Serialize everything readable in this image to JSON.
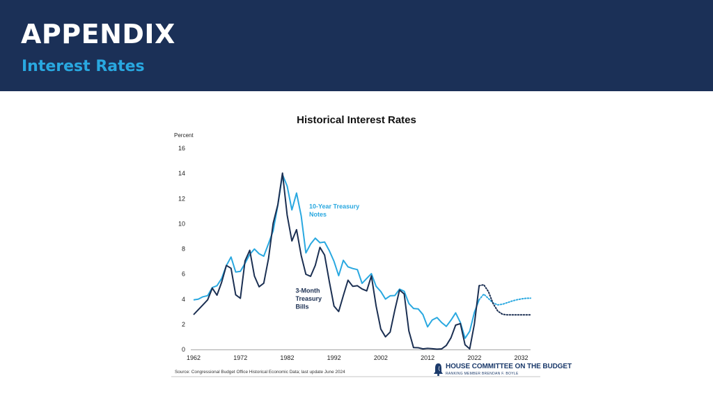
{
  "header": {
    "title": "APPENDIX",
    "subtitle": "Interest Rates"
  },
  "logo": {
    "name": "HOUSE COMMITTEE ON THE BUDGET",
    "sub": "RANKING MEMBER BRENDAN F. BOYLE"
  },
  "colors": {
    "header_bg": "#1b3057",
    "subtitle": "#29a8e0",
    "ten_year": "#29a8e0",
    "three_month": "#1b2f52"
  },
  "chart_data": {
    "type": "line",
    "title": "Historical Interest Rates",
    "ylabel": "Percent",
    "xlabel": "",
    "xlim": [
      1962,
      2034
    ],
    "ylim": [
      0,
      16
    ],
    "x_ticks": [
      1962,
      1972,
      1982,
      1992,
      2002,
      2012,
      2022,
      2032
    ],
    "y_ticks": [
      0,
      2,
      4,
      6,
      8,
      10,
      12,
      14,
      16
    ],
    "grid": false,
    "source": "Source: Congressional Budget Office Historical Economic Data; last update June 2024",
    "series": [
      {
        "name": "10-Year Treasury Notes",
        "label_lines": [
          "10-Year Treasury",
          "Notes"
        ],
        "color": "#29a8e0",
        "x": [
          1962,
          1963,
          1964,
          1965,
          1966,
          1967,
          1968,
          1969,
          1970,
          1971,
          1972,
          1973,
          1974,
          1975,
          1976,
          1977,
          1978,
          1979,
          1980,
          1981,
          1982,
          1983,
          1984,
          1985,
          1986,
          1987,
          1988,
          1989,
          1990,
          1991,
          1992,
          1993,
          1994,
          1995,
          1996,
          1997,
          1998,
          1999,
          2000,
          2001,
          2002,
          2003,
          2004,
          2005,
          2006,
          2007,
          2008,
          2009,
          2010,
          2011,
          2012,
          2013,
          2014,
          2015,
          2016,
          2017,
          2018,
          2019,
          2020,
          2021,
          2022,
          2023
        ],
        "values": [
          3.95,
          4.0,
          4.19,
          4.28,
          4.93,
          5.07,
          5.64,
          6.67,
          7.35,
          6.16,
          6.21,
          6.85,
          7.56,
          7.99,
          7.61,
          7.42,
          8.41,
          9.44,
          11.46,
          13.91,
          13.0,
          11.1,
          12.44,
          10.62,
          7.68,
          8.39,
          8.85,
          8.49,
          8.55,
          7.86,
          7.01,
          5.87,
          7.09,
          6.57,
          6.44,
          6.35,
          5.26,
          5.65,
          6.03,
          5.02,
          4.61,
          4.01,
          4.27,
          4.29,
          4.8,
          4.63,
          3.66,
          3.26,
          3.22,
          2.78,
          1.8,
          2.35,
          2.54,
          2.14,
          1.84,
          2.33,
          2.91,
          2.14,
          0.89,
          1.45,
          2.95,
          3.96
        ],
        "projection": {
          "x": [
            2023,
            2024,
            2025,
            2026,
            2027,
            2028,
            2029,
            2030,
            2031,
            2032,
            2033,
            2034
          ],
          "values": [
            3.96,
            4.4,
            4.05,
            3.7,
            3.55,
            3.6,
            3.72,
            3.85,
            3.95,
            4.02,
            4.07,
            4.08
          ]
        }
      },
      {
        "name": "3-Month Treasury Bills",
        "label_lines": [
          "3-Month",
          "Treasury",
          "Bills"
        ],
        "color": "#1b2f52",
        "x": [
          1962,
          1963,
          1964,
          1965,
          1966,
          1967,
          1968,
          1969,
          1970,
          1971,
          1972,
          1973,
          1974,
          1975,
          1976,
          1977,
          1978,
          1979,
          1980,
          1981,
          1982,
          1983,
          1984,
          1985,
          1986,
          1987,
          1988,
          1989,
          1990,
          1991,
          1992,
          1993,
          1994,
          1995,
          1996,
          1997,
          1998,
          1999,
          2000,
          2001,
          2002,
          2003,
          2004,
          2005,
          2006,
          2007,
          2008,
          2009,
          2010,
          2011,
          2012,
          2013,
          2014,
          2015,
          2016,
          2017,
          2018,
          2019,
          2020,
          2021,
          2022,
          2023
        ],
        "values": [
          2.77,
          3.16,
          3.55,
          3.95,
          4.88,
          4.32,
          5.34,
          6.68,
          6.46,
          4.35,
          4.07,
          7.04,
          7.89,
          5.84,
          4.99,
          5.27,
          7.22,
          10.04,
          11.51,
          14.03,
          10.69,
          8.63,
          9.53,
          7.47,
          5.98,
          5.82,
          6.69,
          8.12,
          7.51,
          5.42,
          3.45,
          3.02,
          4.29,
          5.51,
          5.02,
          5.07,
          4.81,
          4.66,
          5.85,
          3.45,
          1.62,
          1.01,
          1.38,
          3.15,
          4.73,
          4.41,
          1.48,
          0.15,
          0.14,
          0.05,
          0.09,
          0.06,
          0.03,
          0.05,
          0.32,
          0.93,
          1.94,
          2.06,
          0.37,
          0.05,
          2.02,
          5.07
        ],
        "projection": {
          "x": [
            2023,
            2024,
            2025,
            2026,
            2027,
            2028,
            2029,
            2030,
            2031,
            2032,
            2033,
            2034
          ],
          "values": [
            5.07,
            5.15,
            4.6,
            3.65,
            3.05,
            2.8,
            2.75,
            2.75,
            2.75,
            2.75,
            2.75,
            2.75
          ]
        }
      }
    ]
  }
}
